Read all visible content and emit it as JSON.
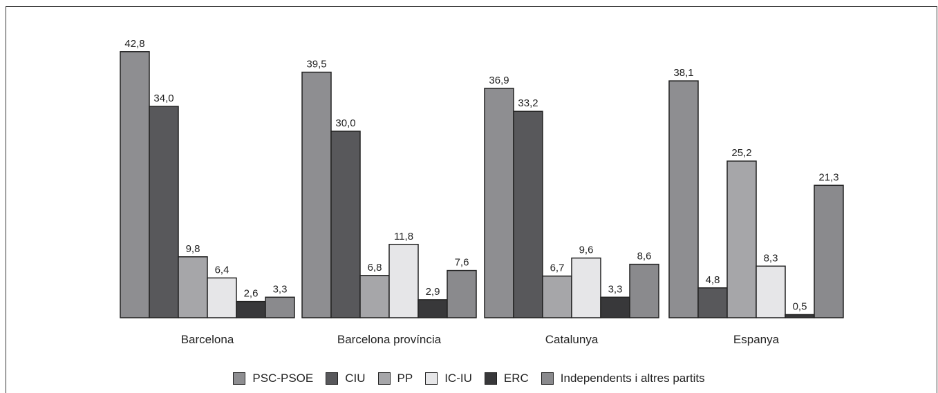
{
  "chart_data": {
    "type": "bar",
    "title": "",
    "xlabel": "",
    "ylabel": "",
    "ylim": [
      0,
      45
    ],
    "grid": false,
    "legend_position": "bottom",
    "categories": [
      "Barcelona",
      "Barcelona província",
      "Catalunya",
      "Espanya"
    ],
    "series": [
      {
        "name": "PSC-PSOE",
        "color": "#8e8e91",
        "values": [
          42.8,
          39.5,
          36.9,
          38.1
        ],
        "labels": [
          "42,8",
          "39,5",
          "36,9",
          "38,1"
        ]
      },
      {
        "name": "CIU",
        "color": "#58585b",
        "values": [
          34.0,
          30.0,
          33.2,
          4.8
        ],
        "labels": [
          "34,0",
          "30,0",
          "33,2",
          "4,8"
        ]
      },
      {
        "name": "PP",
        "color": "#a6a6a9",
        "values": [
          9.8,
          6.8,
          6.7,
          25.2
        ],
        "labels": [
          "9,8",
          "6,8",
          "6,7",
          "25,2"
        ]
      },
      {
        "name": "IC-IU",
        "color": "#e6e6e8",
        "values": [
          6.4,
          11.8,
          9.6,
          8.3
        ],
        "labels": [
          "6,4",
          "11,8",
          "9,6",
          "8,3"
        ]
      },
      {
        "name": "ERC",
        "color": "#38383a",
        "values": [
          2.6,
          2.9,
          3.3,
          0.5
        ],
        "labels": [
          "2,6",
          "2,9",
          "3,3",
          "0,5"
        ]
      },
      {
        "name": "Independents i altres partits",
        "color": "#8a8a8d",
        "values": [
          3.3,
          7.6,
          8.6,
          21.3
        ],
        "labels": [
          "3,3",
          "7,6",
          "8,6",
          "21,3"
        ]
      }
    ]
  }
}
